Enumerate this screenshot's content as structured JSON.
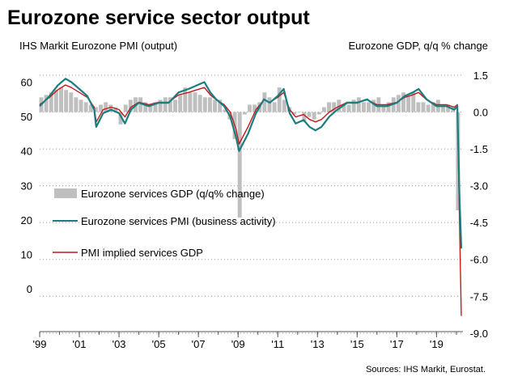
{
  "chart_data": {
    "type": "line",
    "title": "Eurozone service sector output",
    "left_axis_label": "IHS Markit Eurozone PMI (output)",
    "right_axis_label": "Eurozone GDP, q/q % change",
    "source": "Sources: IHS Markit, Eurostat.",
    "x_ticks": [
      "'99",
      "'01",
      "'03",
      "'05",
      "'07",
      "'09",
      "'11",
      "'13",
      "'15",
      "'17",
      "'19"
    ],
    "x_tick_years": [
      1999,
      2001,
      2003,
      2005,
      2007,
      2009,
      2011,
      2013,
      2015,
      2017,
      2019
    ],
    "xlim": [
      1999.0,
      2020.33
    ],
    "left_ticks": [
      "60",
      "50",
      "40",
      "30",
      "20",
      "10",
      "0"
    ],
    "left_tick_values": [
      60,
      50,
      40,
      30,
      20,
      10,
      0
    ],
    "left_ylim": [
      -12.4,
      62
    ],
    "right_ticks": [
      "1.5",
      "0.0",
      "-1.5",
      "-3.0",
      "-4.5",
      "-6.0",
      "-7.5",
      "-9.0"
    ],
    "right_tick_values": [
      1.5,
      0.0,
      -1.5,
      -3.0,
      -4.5,
      -6.0,
      -7.5,
      -9.0
    ],
    "right_ylim": [
      -8.94,
      1.5
    ],
    "grid": "horizontal-dotted",
    "legend_position": "left",
    "colors": {
      "bars": "#bfbfbf",
      "pmi": "#1a7d80",
      "implied": "#c41a1a",
      "axis": "#555555"
    },
    "series": [
      {
        "name": "Eurozone services GDP (q/q% change)",
        "type": "bar",
        "axis": "right",
        "x": [
          1999.0,
          1999.25,
          1999.5,
          1999.75,
          2000.0,
          2000.25,
          2000.5,
          2000.75,
          2001.0,
          2001.25,
          2001.5,
          2001.75,
          2002.0,
          2002.25,
          2002.5,
          2002.75,
          2003.0,
          2003.25,
          2003.5,
          2003.75,
          2004.0,
          2004.25,
          2004.5,
          2004.75,
          2005.0,
          2005.25,
          2005.5,
          2005.75,
          2006.0,
          2006.25,
          2006.5,
          2006.75,
          2007.0,
          2007.25,
          2007.5,
          2007.75,
          2008.0,
          2008.25,
          2008.5,
          2008.75,
          2009.0,
          2009.25,
          2009.5,
          2009.75,
          2010.0,
          2010.25,
          2010.5,
          2010.75,
          2011.0,
          2011.25,
          2011.5,
          2011.75,
          2012.0,
          2012.25,
          2012.5,
          2012.75,
          2013.0,
          2013.25,
          2013.5,
          2013.75,
          2014.0,
          2014.25,
          2014.5,
          2014.75,
          2015.0,
          2015.25,
          2015.5,
          2015.75,
          2016.0,
          2016.25,
          2016.5,
          2016.75,
          2017.0,
          2017.25,
          2017.5,
          2017.75,
          2018.0,
          2018.25,
          2018.5,
          2018.75,
          2019.0,
          2019.25,
          2019.5,
          2019.75,
          2020.0
        ],
        "values": [
          0.6,
          0.7,
          0.8,
          0.9,
          1.0,
          0.9,
          0.8,
          0.6,
          0.5,
          0.4,
          0.3,
          0.2,
          0.3,
          0.4,
          0.3,
          0.2,
          -0.5,
          0.3,
          0.5,
          0.6,
          0.6,
          0.4,
          0.3,
          0.4,
          0.5,
          0.6,
          0.6,
          0.5,
          0.7,
          1.0,
          0.8,
          0.8,
          0.7,
          0.6,
          0.6,
          0.5,
          0.5,
          0.1,
          -0.3,
          -1.1,
          -4.3,
          -0.1,
          0.3,
          0.3,
          0.4,
          0.8,
          0.6,
          0.4,
          1.0,
          0.5,
          0.2,
          -0.1,
          0.0,
          -0.4,
          -0.2,
          -0.3,
          -0.1,
          0.2,
          0.4,
          0.4,
          0.5,
          0.3,
          0.3,
          0.5,
          0.6,
          0.4,
          0.4,
          0.5,
          0.6,
          0.3,
          0.4,
          0.6,
          0.7,
          0.8,
          0.7,
          0.8,
          0.4,
          0.4,
          0.3,
          0.4,
          0.5,
          0.3,
          0.3,
          0.2,
          -4.0
        ]
      },
      {
        "name": "Eurozone services PMI (business activity)",
        "type": "line",
        "axis": "left",
        "x": [
          1999.0,
          1999.5,
          1999.9,
          2000.3,
          2000.6,
          2001.0,
          2001.4,
          2001.75,
          2001.85,
          2002.2,
          2002.6,
          2003.0,
          2003.3,
          2003.6,
          2004.0,
          2004.5,
          2005.0,
          2005.5,
          2006.0,
          2006.5,
          2006.9,
          2007.3,
          2007.6,
          2007.9,
          2008.3,
          2008.6,
          2008.9,
          2009.05,
          2009.5,
          2009.9,
          2010.3,
          2010.6,
          2011.0,
          2011.3,
          2011.6,
          2011.9,
          2012.3,
          2012.6,
          2012.9,
          2013.2,
          2013.6,
          2014.0,
          2014.5,
          2015.0,
          2015.5,
          2016.0,
          2016.5,
          2017.0,
          2017.4,
          2017.8,
          2018.1,
          2018.5,
          2019.0,
          2019.5,
          2019.9,
          2020.05,
          2020.16,
          2020.25
        ],
        "values": [
          53,
          56,
          59,
          61,
          60,
          58,
          56,
          52,
          47,
          51,
          52,
          51,
          48,
          52,
          54,
          53,
          54,
          54,
          57,
          58,
          59,
          60,
          57,
          55,
          53,
          50,
          44,
          40,
          45,
          51,
          55,
          54,
          56,
          58,
          51,
          48,
          49,
          47,
          46,
          47,
          50,
          52,
          54,
          54,
          55,
          53,
          53,
          54,
          56,
          57,
          58,
          55,
          53,
          53,
          52,
          53,
          26.4,
          11.7
        ]
      },
      {
        "name": "PMI implied services GDP",
        "type": "line",
        "axis": "right",
        "x": [
          1999.0,
          1999.5,
          1999.9,
          2000.3,
          2000.6,
          2001.0,
          2001.4,
          2001.75,
          2001.85,
          2002.2,
          2002.6,
          2003.0,
          2003.3,
          2003.6,
          2004.0,
          2004.5,
          2005.0,
          2005.5,
          2006.0,
          2006.5,
          2006.9,
          2007.3,
          2007.6,
          2007.9,
          2008.3,
          2008.6,
          2008.9,
          2009.05,
          2009.5,
          2009.9,
          2010.3,
          2010.6,
          2011.0,
          2011.3,
          2011.6,
          2011.9,
          2012.3,
          2012.6,
          2012.9,
          2013.2,
          2013.6,
          2014.0,
          2014.5,
          2015.0,
          2015.5,
          2016.0,
          2016.5,
          2017.0,
          2017.4,
          2017.8,
          2018.1,
          2018.5,
          2019.0,
          2019.5,
          2019.9,
          2020.05,
          2020.16,
          2020.25
        ],
        "values": [
          0.3,
          0.6,
          0.9,
          1.1,
          1.0,
          0.8,
          0.6,
          0.2,
          -0.4,
          0.1,
          0.2,
          0.1,
          -0.2,
          0.2,
          0.4,
          0.3,
          0.4,
          0.4,
          0.7,
          0.8,
          0.9,
          1.0,
          0.7,
          0.5,
          0.3,
          0.0,
          -0.7,
          -1.3,
          -0.6,
          0.1,
          0.5,
          0.4,
          0.6,
          0.8,
          0.1,
          -0.2,
          -0.1,
          -0.3,
          -0.4,
          -0.3,
          0.0,
          0.2,
          0.4,
          0.4,
          0.5,
          0.3,
          0.3,
          0.4,
          0.6,
          0.7,
          0.8,
          0.5,
          0.3,
          0.3,
          0.2,
          0.3,
          -4.5,
          -8.3
        ]
      }
    ]
  }
}
